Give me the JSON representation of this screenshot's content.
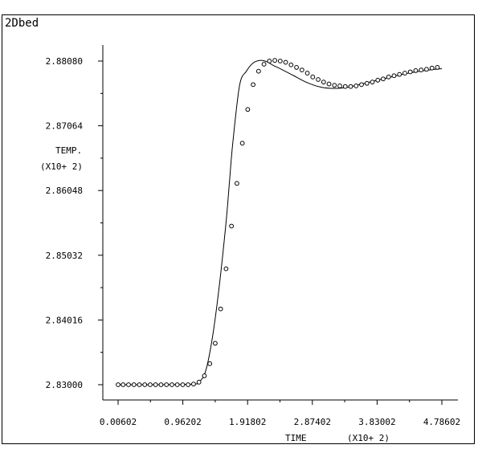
{
  "window": {
    "title": "2Dbed"
  },
  "chart_data": {
    "type": "line",
    "title": "",
    "xlabel": "TIME",
    "xlabel_scale": "(X10+ 2)",
    "ylabel": "TEMP.",
    "ylabel_scale": "(X10+ 2)",
    "xlim": [
      0.00602,
      4.78602
    ],
    "ylim": [
      2.83,
      2.8808
    ],
    "x_ticks": [
      0.00602,
      0.96202,
      1.91802,
      2.87402,
      3.83002,
      4.78602
    ],
    "x_tick_labels": [
      "0.00602",
      "0.96202",
      "1.91802",
      "2.87402",
      "3.83002",
      "4.78602"
    ],
    "y_ticks": [
      2.83,
      2.84016,
      2.85032,
      2.86048,
      2.87064,
      2.8808
    ],
    "y_tick_labels": [
      "2.83000",
      "2.84016",
      "2.85032",
      "2.86048",
      "2.87064",
      "2.88080"
    ],
    "grid": false,
    "series": [
      {
        "style": "line",
        "x": [
          0.00602,
          0.6,
          1.1,
          1.2,
          1.3,
          1.4,
          1.5,
          1.6,
          1.65,
          1.7,
          1.8,
          1.9,
          2.0,
          2.1,
          2.2,
          2.3,
          2.4,
          2.6,
          2.8,
          3.0,
          3.2,
          3.4,
          3.6,
          3.8,
          4.0,
          4.2,
          4.4,
          4.6,
          4.78602
        ],
        "y": [
          2.83,
          2.83,
          2.8301,
          2.8304,
          2.8322,
          2.8375,
          2.8455,
          2.8555,
          2.8618,
          2.868,
          2.877,
          2.8792,
          2.8805,
          2.8809,
          2.8807,
          2.8801,
          2.8796,
          2.8785,
          2.8774,
          2.8767,
          2.8765,
          2.8767,
          2.8772,
          2.8777,
          2.8782,
          2.8787,
          2.8791,
          2.8794,
          2.8796
        ]
      },
      {
        "style": "markers",
        "x": [
          0.00602,
          0.08,
          0.16,
          0.24,
          0.32,
          0.4,
          0.48,
          0.56,
          0.64,
          0.72,
          0.8,
          0.88,
          0.96,
          1.04,
          1.12,
          1.2,
          1.28,
          1.36,
          1.44,
          1.52,
          1.6,
          1.68,
          1.76,
          1.84,
          1.92,
          2.0,
          2.08,
          2.16,
          2.24,
          2.32,
          2.4,
          2.48,
          2.56,
          2.64,
          2.72,
          2.8,
          2.88,
          2.96,
          3.04,
          3.12,
          3.2,
          3.28,
          3.36,
          3.44,
          3.52,
          3.6,
          3.68,
          3.76,
          3.84,
          3.92,
          4.0,
          4.08,
          4.16,
          4.24,
          4.32,
          4.4,
          4.48,
          4.56,
          4.64,
          4.72
        ],
        "y": [
          2.83,
          2.83,
          2.83,
          2.83,
          2.83,
          2.83,
          2.83,
          2.83,
          2.83,
          2.83,
          2.83,
          2.83,
          2.83,
          2.83,
          2.8301,
          2.8304,
          2.8314,
          2.8333,
          2.8365,
          2.8419,
          2.8482,
          2.8549,
          2.8616,
          2.8679,
          2.8732,
          2.8771,
          2.8792,
          2.8803,
          2.8808,
          2.8809,
          2.8808,
          2.8806,
          2.8802,
          2.8798,
          2.8794,
          2.8789,
          2.8783,
          2.8779,
          2.8775,
          2.8772,
          2.877,
          2.8769,
          2.8768,
          2.8768,
          2.8769,
          2.8771,
          2.8773,
          2.8775,
          2.8778,
          2.878,
          2.8783,
          2.8785,
          2.8787,
          2.8789,
          2.8791,
          2.8793,
          2.8794,
          2.8795,
          2.8797,
          2.8798
        ]
      }
    ]
  }
}
